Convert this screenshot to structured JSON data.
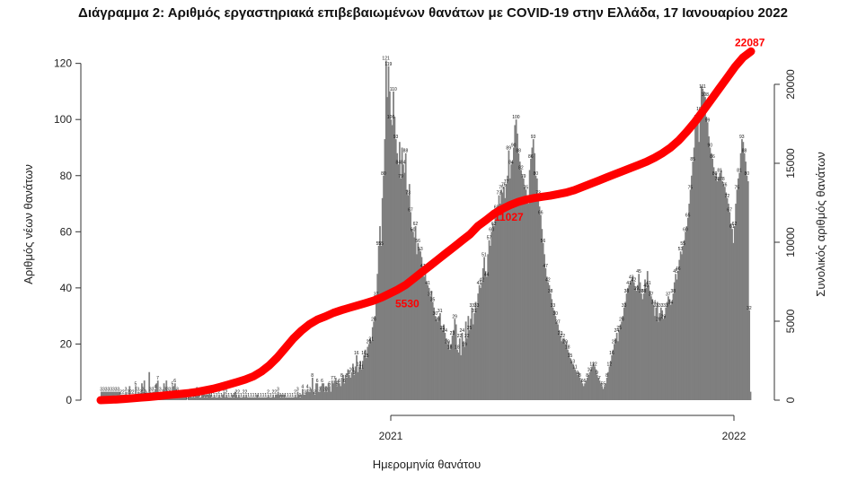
{
  "chart_data": {
    "type": "bar",
    "title": "Διάγραμμα 2: Αριθμός εργαστηριακά επιβεβαιωμένων θανάτων με COVID-19 στην Ελλάδα, 17 Ιανουαρίου 2022",
    "xlabel": "Ημερομηνία θανάτου",
    "ylabel": "Αριθμός νέων θανάτων",
    "y2label": "Συνολικός αριθμός θανάτων",
    "ylim": [
      0,
      125
    ],
    "y2lim": [
      0,
      22500
    ],
    "yticks": [
      0,
      20,
      40,
      60,
      80,
      100,
      120
    ],
    "y2ticks": [
      0,
      5000,
      10000,
      15000,
      20000
    ],
    "xticks": [
      "2021",
      "2022"
    ],
    "bar_color": "#7f7f7f",
    "line_color": "#ff0000",
    "series": [
      {
        "kind": "bar",
        "values": [
          3,
          3,
          3,
          3,
          3,
          3,
          3,
          3,
          3,
          3,
          3,
          3,
          3,
          3,
          3,
          3,
          2,
          2,
          2,
          2,
          3,
          2,
          2,
          5,
          2,
          2,
          2,
          2,
          5,
          1,
          3,
          2,
          2,
          6,
          3,
          7,
          2,
          3,
          1,
          10,
          3,
          2,
          3,
          3,
          4,
          6,
          7,
          2,
          3,
          2,
          2,
          6,
          3,
          7,
          3,
          2,
          3,
          3,
          5,
          5,
          6,
          4,
          3,
          2,
          1,
          1,
          1,
          1,
          1,
          1,
          0,
          1,
          2,
          2,
          1,
          2,
          1,
          2,
          3,
          2,
          1,
          1,
          3,
          2,
          1,
          2,
          1,
          2,
          3,
          2,
          1,
          1,
          2,
          1,
          1,
          1,
          2,
          1,
          1,
          2,
          3,
          1,
          2,
          1,
          1,
          1,
          1,
          2,
          1,
          3,
          2,
          1,
          2,
          1,
          1,
          1,
          2,
          1,
          2,
          1,
          1,
          1,
          1,
          1,
          1,
          1,
          1,
          2,
          1,
          1,
          1,
          1,
          1,
          1,
          1,
          1,
          2,
          1,
          1,
          1,
          2,
          1,
          2,
          2,
          3,
          2,
          1,
          2,
          1,
          2,
          1,
          1,
          1,
          1,
          1,
          1,
          1,
          1,
          2,
          1,
          3,
          2,
          1,
          2,
          4,
          2,
          2,
          3,
          4,
          3,
          3,
          4,
          8,
          3,
          2,
          6,
          6,
          3,
          3,
          5,
          6,
          6,
          3,
          5,
          3,
          6,
          5,
          3,
          7,
          6,
          7,
          8,
          5,
          7,
          6,
          5,
          8,
          9,
          6,
          9,
          8,
          11,
          9,
          8,
          10,
          13,
          9,
          12,
          16,
          10,
          12,
          14,
          11,
          14,
          16,
          18,
          15,
          19,
          20,
          22,
          21,
          26,
          28,
          30,
          37,
          45,
          55,
          62,
          55,
          72,
          80,
          93,
          121,
          108,
          119,
          110,
          100,
          98,
          110,
          101,
          93,
          88,
          84,
          92,
          79,
          90,
          84,
          81,
          88,
          75,
          73,
          77,
          67,
          61,
          60,
          58,
          62,
          52,
          56,
          54,
          53,
          51,
          47,
          44,
          45,
          42,
          41,
          40,
          37,
          39,
          35,
          33,
          30,
          29,
          28,
          30,
          31,
          26,
          25,
          27,
          24,
          22,
          20,
          21,
          18,
          20,
          23,
          25,
          29,
          27,
          18,
          17,
          22,
          16,
          24,
          21,
          19,
          28,
          22,
          30,
          25,
          29,
          33,
          27,
          31,
          35,
          33,
          38,
          41,
          40,
          42,
          47,
          51,
          46,
          44,
          52,
          57,
          55,
          60,
          63,
          62,
          66,
          68,
          66,
          73,
          70,
          75,
          74,
          76,
          72,
          77,
          80,
          89,
          79,
          84,
          85,
          90,
          98,
          100,
          95,
          88,
          85,
          82,
          80,
          79,
          76,
          75,
          73,
          70,
          82,
          86,
          90,
          93,
          88,
          80,
          79,
          73,
          69,
          66,
          61,
          56,
          52,
          47,
          44,
          42,
          41,
          38,
          36,
          33,
          32,
          30,
          28,
          27,
          25,
          23,
          21,
          22,
          22,
          20,
          21,
          18,
          17,
          15,
          14,
          13,
          12,
          11,
          10,
          9,
          10,
          8,
          7,
          6,
          5,
          6,
          7,
          8,
          9,
          10,
          11,
          12,
          13,
          12,
          11,
          9,
          8,
          7,
          6,
          5,
          4,
          5,
          6,
          8,
          10,
          12,
          14,
          16,
          18,
          20,
          22,
          24,
          21,
          25,
          27,
          28,
          30,
          33,
          35,
          38,
          40,
          41,
          42,
          43,
          44,
          42,
          40,
          39,
          41,
          45,
          42,
          38,
          36,
          38,
          43,
          40,
          46,
          41,
          39,
          37,
          36,
          34,
          30,
          33,
          35,
          28,
          31,
          33,
          32,
          29,
          30,
          33,
          35,
          37,
          36,
          34,
          35,
          38,
          42,
          45,
          43,
          46,
          50,
          53,
          52,
          55,
          57,
          60,
          62,
          65,
          70,
          75,
          80,
          85,
          90,
          98,
          102,
          100,
          92,
          103,
          112,
          111,
          110,
          108,
          101,
          99,
          94,
          90,
          88,
          86,
          83,
          80,
          81,
          78,
          79,
          81,
          82,
          78,
          77,
          76,
          74,
          72,
          70,
          67,
          63,
          61,
          56,
          62,
          70,
          75,
          79,
          81,
          88,
          93,
          92,
          88,
          85,
          80,
          78,
          32,
          3
        ]
      },
      {
        "kind": "line",
        "values": [
          0,
          20,
          45,
          80,
          120,
          160,
          200,
          250,
          300,
          350,
          400,
          450,
          520,
          620,
          720,
          850,
          1000,
          1150,
          1300,
          1500,
          1800,
          2200,
          2700,
          3300,
          3900,
          4400,
          4800,
          5100,
          5300,
          5530,
          5700,
          5850,
          6000,
          6150,
          6300,
          6500,
          6750,
          7000,
          7300,
          7700,
          8100,
          8500,
          8900,
          9300,
          9700,
          10100,
          10500,
          11027,
          11400,
          11800,
          12100,
          12350,
          12550,
          12700,
          12800,
          12880,
          12950,
          13050,
          13150,
          13300,
          13500,
          13700,
          13900,
          14100,
          14300,
          14500,
          14700,
          14900,
          15100,
          15350,
          15650,
          16000,
          16450,
          17000,
          17600,
          18300,
          19000,
          19700,
          20400,
          21100,
          21700,
          22087
        ]
      }
    ],
    "annotations": [
      {
        "label": "5530",
        "value": 5530
      },
      {
        "label": "11027",
        "value": 11027
      },
      {
        "label": "22087",
        "value": 22087
      }
    ]
  }
}
